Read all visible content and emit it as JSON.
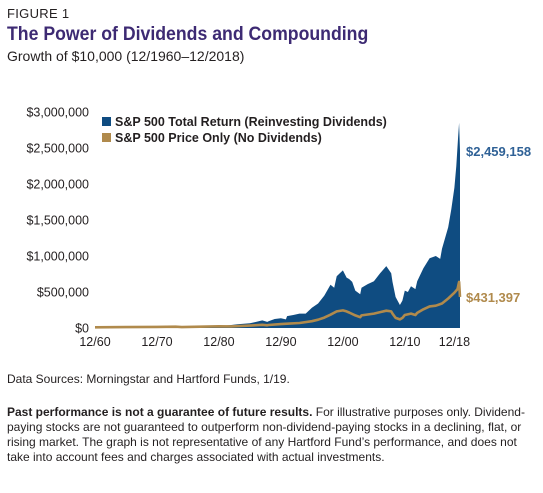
{
  "figure_label": "FIGURE 1",
  "title": "The Power of Dividends and Compounding",
  "subtitle": "Growth of $10,000 (12/1960–12/2018)",
  "sources": "Data Sources: Morningstar and Hartford Funds, 1/19.",
  "disclaimer": {
    "bold": "Past performance is not a guarantee of future results.",
    "text": " For illustrative purposes only. Dividend-paying stocks are not guaranteed to outperform non-dividend-paying stocks in a declining, flat, or rising market. The graph is not representative of any Hartford Fund’s performance, and does not take into account fees and charges associated with actual investments."
  },
  "chart_data": {
    "type": "area",
    "title": "The Power of Dividends and Compounding",
    "xlabel": "",
    "ylabel": "",
    "xlim": [
      1960,
      2018.9
    ],
    "ylim": [
      0,
      3000000
    ],
    "x_ticks": [
      1960,
      1970,
      1980,
      1990,
      2000,
      2010,
      2018
    ],
    "x_tick_labels": [
      "12/60",
      "12/70",
      "12/80",
      "12/90",
      "12/00",
      "12/10",
      "12/18"
    ],
    "y_ticks": [
      0,
      500000,
      1000000,
      1500000,
      2000000,
      2500000,
      3000000
    ],
    "y_tick_labels": [
      "$0",
      "$500,000",
      "$1,000,000",
      "$1,500,000",
      "$2,000,000",
      "$2,500,000",
      "$3,000,000"
    ],
    "grid": false,
    "legend": "top-left",
    "series": [
      {
        "name": "S&P 500 Total Return (Reinvesting Dividends)",
        "kind": "area",
        "color": "#0f4c81",
        "end_label": "$2,459,158",
        "x": [
          1960,
          1962,
          1965,
          1968,
          1970,
          1972,
          1973,
          1974,
          1976,
          1978,
          1980,
          1981,
          1982,
          1983,
          1985,
          1986,
          1987,
          1987.8,
          1988,
          1989,
          1990,
          1990.8,
          1991,
          1992,
          1993,
          1994,
          1995,
          1996,
          1997,
          1998,
          1998.6,
          1999,
          1999.5,
          2000,
          2000.6,
          2001,
          2001.5,
          2002,
          2002.8,
          2003,
          2004,
          2005,
          2006,
          2007,
          2007.8,
          2008,
          2008.5,
          2009.2,
          2009.6,
          2010,
          2010.5,
          2011,
          2011.7,
          2012,
          2013,
          2014,
          2015,
          2015.7,
          2016,
          2016.5,
          2017,
          2017.5,
          2018,
          2018.3,
          2018.6,
          2018.75,
          2018.9
        ],
        "values": [
          10000,
          12000,
          16000,
          21000,
          19000,
          24000,
          22000,
          16000,
          24000,
          25000,
          35000,
          33000,
          42000,
          52000,
          65000,
          85000,
          105000,
          85000,
          95000,
          125000,
          135000,
          120000,
          165000,
          180000,
          200000,
          200000,
          280000,
          340000,
          450000,
          600000,
          560000,
          720000,
          760000,
          800000,
          700000,
          680000,
          640000,
          520000,
          470000,
          560000,
          610000,
          650000,
          760000,
          860000,
          760000,
          640000,
          430000,
          320000,
          380000,
          520000,
          500000,
          580000,
          540000,
          650000,
          830000,
          970000,
          1000000,
          960000,
          1100000,
          1250000,
          1400000,
          1650000,
          1950000,
          2250000,
          2650000,
          2850000,
          2459158
        ]
      },
      {
        "name": "S&P 500 Price Only (No Dividends)",
        "kind": "line",
        "color": "#b08a4c",
        "end_label": "$431,397",
        "x": [
          1960,
          1965,
          1970,
          1973,
          1974,
          1976,
          1980,
          1982,
          1985,
          1987,
          1987.8,
          1988,
          1990,
          1991,
          1993,
          1995,
          1996,
          1997,
          1998,
          1999,
          2000,
          2000.6,
          2001,
          2002,
          2002.8,
          2003,
          2005,
          2007,
          2007.8,
          2008,
          2008.5,
          2009.2,
          2009.6,
          2010,
          2011,
          2011.7,
          2012,
          2013,
          2014,
          2015,
          2016,
          2017,
          2018,
          2018.5,
          2018.75,
          2018.9
        ],
        "values": [
          10000,
          13000,
          15000,
          18000,
          12000,
          17000,
          23000,
          22000,
          33000,
          44000,
          38000,
          42000,
          54000,
          60000,
          70000,
          95000,
          115000,
          145000,
          185000,
          230000,
          245000,
          230000,
          215000,
          175000,
          150000,
          175000,
          200000,
          240000,
          230000,
          200000,
          140000,
          120000,
          140000,
          180000,
          200000,
          180000,
          210000,
          260000,
          300000,
          310000,
          340000,
          410000,
          490000,
          540000,
          640000,
          431397
        ]
      }
    ]
  }
}
